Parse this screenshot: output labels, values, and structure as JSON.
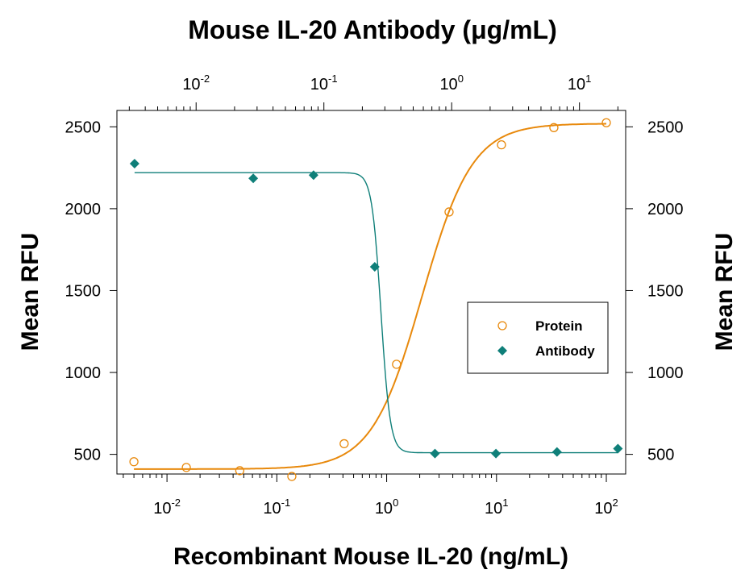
{
  "chart_data": {
    "type": "scatter",
    "title": "Mouse IL-20 Antibody (μg/mL)",
    "xlabel": "Recombinant Mouse IL-20 (ng/mL)",
    "ylabel": "Mean RFU",
    "ylabel_right": "Mean RFU",
    "x_scale": "log",
    "xlim": [
      0.0035,
      150
    ],
    "ylim": [
      380,
      2600
    ],
    "x_top_scale": "log",
    "x_top_lim": [
      0.0024,
      23
    ],
    "x_ticks": [
      0.01,
      0.1,
      1,
      10,
      100
    ],
    "x_tick_labels": [
      {
        "base": "10",
        "exp": "-2"
      },
      {
        "base": "10",
        "exp": "-1"
      },
      {
        "base": "10",
        "exp": "0"
      },
      {
        "base": "10",
        "exp": "1"
      },
      {
        "base": "10",
        "exp": "2"
      }
    ],
    "x_top_ticks": [
      0.01,
      0.1,
      1,
      10
    ],
    "x_top_tick_labels": [
      {
        "base": "10",
        "exp": "-2"
      },
      {
        "base": "10",
        "exp": "-1"
      },
      {
        "base": "10",
        "exp": "0"
      },
      {
        "base": "10",
        "exp": "1"
      }
    ],
    "y_ticks": [
      500,
      1000,
      1500,
      2000,
      2500
    ],
    "y_tick_labels": [
      "500",
      "1000",
      "1500",
      "2000",
      "2500"
    ],
    "grid": false,
    "legend_position": "center-right",
    "series": [
      {
        "name": "Protein",
        "axis": "bottom",
        "marker": "open-circle",
        "color": "#e8890c",
        "x": [
          0.005,
          0.015,
          0.046,
          0.137,
          0.41,
          1.23,
          3.7,
          11.1,
          33.3,
          100
        ],
        "y": [
          455,
          420,
          400,
          365,
          565,
          1050,
          1980,
          2390,
          2495,
          2525
        ],
        "fit": {
          "bottom": 410,
          "top": 2520,
          "ec50": 2.1,
          "hill": 1.9
        }
      },
      {
        "name": "Antibody",
        "axis": "top",
        "marker": "filled-diamond",
        "color": "#0f7f79",
        "x": [
          0.0033,
          0.028,
          0.083,
          0.25,
          0.74,
          2.22,
          6.67,
          20
        ],
        "y": [
          2275,
          2185,
          2205,
          1645,
          505,
          505,
          515,
          535
        ],
        "fit": {
          "bottom": 510,
          "top": 2220,
          "ec50": 0.28,
          "hill": -12
        }
      }
    ]
  }
}
